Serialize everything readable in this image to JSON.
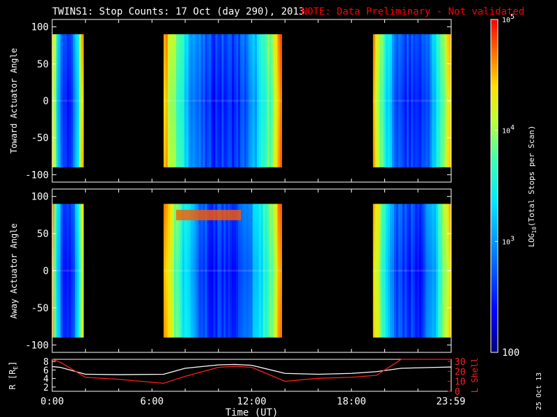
{
  "title": {
    "main": "TWINS1: Stop Counts: 17 Oct (day 290), 2013",
    "note": "NOTE: Data Preliminary - Not validated",
    "note_color": "#ff0000"
  },
  "stamp": "25 Oct 13",
  "colorbar": {
    "label": "LOG10(Total Stops per Scan)",
    "ticks": [
      "10^5",
      "10^4",
      "10^3",
      "100"
    ],
    "min": 100,
    "max": 100000,
    "scale": "log",
    "colormap": "rainbow"
  },
  "chart_data": [
    {
      "type": "heatmap",
      "ylabel": "Toward Actuator Angle",
      "ylim": [
        -110,
        110
      ],
      "yticks": [
        "100",
        "50",
        "0",
        "-50",
        "-100"
      ],
      "xlim_hours": [
        0,
        24
      ],
      "angle_range": [
        -90,
        90
      ],
      "data_intervals_hours": [
        [
          0.0,
          1.87
        ],
        [
          6.7,
          13.8
        ],
        [
          19.3,
          23.98
        ]
      ],
      "edge_log_counts": 4.6,
      "center_log_counts": 2.55
    },
    {
      "type": "heatmap",
      "ylabel": "Away Actuator Angle",
      "ylim": [
        -110,
        110
      ],
      "yticks": [
        "100",
        "50",
        "0",
        "-50",
        "-100"
      ],
      "xlim_hours": [
        0,
        24
      ],
      "angle_range": [
        -90,
        90
      ],
      "data_intervals_hours": [
        [
          0.0,
          1.87
        ],
        [
          6.7,
          13.8
        ],
        [
          19.3,
          23.98
        ]
      ],
      "edge_log_counts": 4.6,
      "center_log_counts": 2.55
    },
    {
      "type": "line",
      "xlabel": "Time (UT)",
      "xticks": [
        "0:00",
        "6:00",
        "12:00",
        "18:00",
        "23:59"
      ],
      "x_hours": [
        0,
        0.5,
        2,
        4,
        6.7,
        8,
        10,
        11,
        12,
        14,
        16,
        18,
        19.5,
        21,
        23,
        24
      ],
      "series": [
        {
          "name": "R [RE]",
          "axis": "left",
          "color": "#ffffff",
          "ylim": [
            1,
            8.5
          ],
          "yticks": [
            "8",
            "6",
            "4",
            "2"
          ],
          "values": [
            6.8,
            6.6,
            5.0,
            4.9,
            5.0,
            6.4,
            7.2,
            7.3,
            7.1,
            5.2,
            5.0,
            5.2,
            5.6,
            6.4,
            6.6,
            6.7
          ]
        },
        {
          "name": "L Shell",
          "axis": "right",
          "color": "#ff2020",
          "ylim": [
            0,
            32
          ],
          "yticks": [
            "30",
            "20",
            "10",
            "0"
          ],
          "values": [
            32,
            29,
            14,
            12,
            8,
            15,
            24,
            25,
            24,
            10,
            13,
            14,
            16,
            34,
            40,
            40
          ]
        }
      ]
    }
  ]
}
